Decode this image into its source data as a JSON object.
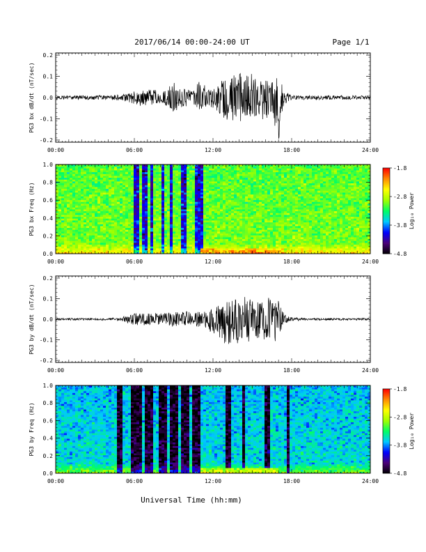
{
  "header": {
    "title": "2017/06/14  00:00-24:00 UT",
    "page": "Page 1/1"
  },
  "footer": {
    "xlabel": "Universal Time (hh:mm)"
  },
  "colorbar": {
    "label": "Log₁₀ Power",
    "ticks": [
      "-1.8",
      "-2.8",
      "-3.8",
      "-4.8"
    ],
    "range": [
      -4.8,
      -1.8
    ],
    "stops": [
      "#000000",
      "#4b0078",
      "#0000ff",
      "#00c8ff",
      "#00ff64",
      "#a0ff00",
      "#ffff00",
      "#ff8c00",
      "#ff0000"
    ]
  },
  "chart_data": [
    {
      "type": "line",
      "ylabel": "PG3 bx dB/dt (nT/sec)",
      "x_ticks": [
        "00:00",
        "06:00",
        "12:00",
        "18:00",
        "24:00"
      ],
      "xlim_hours": [
        0,
        24
      ],
      "ylim": [
        -0.21,
        0.21
      ],
      "y_ticks": [
        "0.2",
        "0.1",
        "0.0",
        "-0.1",
        "-0.2"
      ],
      "x": [
        0,
        1,
        2,
        3,
        4,
        5,
        5.5,
        6,
        6.5,
        7,
        7.5,
        8,
        8.5,
        9,
        9.5,
        10,
        10.5,
        11,
        11.5,
        12,
        12.5,
        13,
        13.5,
        14,
        14.5,
        15,
        15.5,
        16,
        16.5,
        17,
        17.5,
        18,
        19,
        20,
        21,
        22,
        23,
        24
      ],
      "envelope_max": [
        0.01,
        0.01,
        0.01,
        0.01,
        0.01,
        0.015,
        0.02,
        0.03,
        0.03,
        0.04,
        0.04,
        0.03,
        0.04,
        0.1,
        0.05,
        0.04,
        0.03,
        0.12,
        0.04,
        0.05,
        0.08,
        0.1,
        0.11,
        0.12,
        0.12,
        0.11,
        0.1,
        0.09,
        0.07,
        0.1,
        0.03,
        0.01,
        0.01,
        0.01,
        0.01,
        0.01,
        0.01,
        0.01
      ],
      "envelope_min": [
        -0.01,
        -0.01,
        -0.01,
        -0.01,
        -0.01,
        -0.015,
        -0.02,
        -0.03,
        -0.04,
        -0.04,
        -0.03,
        -0.03,
        -0.04,
        -0.07,
        -0.05,
        -0.04,
        -0.03,
        -0.06,
        -0.04,
        -0.05,
        -0.08,
        -0.12,
        -0.11,
        -0.13,
        -0.1,
        -0.12,
        -0.09,
        -0.12,
        -0.08,
        -0.2,
        -0.03,
        -0.01,
        -0.01,
        -0.01,
        -0.01,
        -0.01,
        -0.01,
        -0.01
      ]
    },
    {
      "type": "heatmap",
      "ylabel": "PG3 bx Freq (Hz)",
      "x_ticks": [
        "00:00",
        "06:00",
        "12:00",
        "18:00",
        "24:00"
      ],
      "xlim_hours": [
        0,
        24
      ],
      "ylim": [
        0,
        1
      ],
      "y_ticks": [
        "1.0",
        "0.8",
        "0.6",
        "0.4",
        "0.2",
        "0.0"
      ],
      "z_range": [
        -4.8,
        -1.8
      ],
      "base_level": -3.0,
      "dark_bands_hours": [
        [
          5.9,
          6.3
        ],
        [
          6.6,
          7.0
        ],
        [
          7.15,
          7.5
        ],
        [
          8.0,
          8.3
        ],
        [
          8.7,
          9.0
        ],
        [
          9.6,
          10.0
        ],
        [
          10.7,
          11.3
        ]
      ],
      "low_freq_activity_hours": [
        11.0,
        17.5
      ],
      "peak_level": -1.9
    },
    {
      "type": "line",
      "ylabel": "PG3 by dB/dt (nT/sec)",
      "x_ticks": [
        "00:00",
        "06:00",
        "12:00",
        "18:00",
        "24:00"
      ],
      "xlim_hours": [
        0,
        24
      ],
      "ylim": [
        -0.21,
        0.21
      ],
      "y_ticks": [
        "0.2",
        "0.1",
        "0.0",
        "-0.1",
        "-0.2"
      ],
      "x": [
        0,
        1,
        2,
        3,
        4,
        5,
        5.5,
        6,
        6.5,
        7,
        7.5,
        8,
        8.5,
        9,
        9.5,
        10,
        10.5,
        11,
        11.5,
        12,
        12.5,
        13,
        13.5,
        14,
        14.5,
        15,
        15.5,
        16,
        16.5,
        17,
        17.5,
        18,
        19,
        20,
        21,
        22,
        23,
        24
      ],
      "envelope_max": [
        0.005,
        0.005,
        0.005,
        0.005,
        0.005,
        0.01,
        0.02,
        0.03,
        0.03,
        0.03,
        0.03,
        0.03,
        0.03,
        0.04,
        0.03,
        0.04,
        0.03,
        0.04,
        0.04,
        0.06,
        0.07,
        0.09,
        0.1,
        0.1,
        0.11,
        0.09,
        0.08,
        0.1,
        0.11,
        0.09,
        0.02,
        0.01,
        0.005,
        0.005,
        0.005,
        0.005,
        0.005,
        0.005
      ],
      "envelope_min": [
        -0.005,
        -0.005,
        -0.005,
        -0.005,
        -0.005,
        -0.01,
        -0.02,
        -0.03,
        -0.03,
        -0.03,
        -0.02,
        -0.03,
        -0.03,
        -0.04,
        -0.03,
        -0.03,
        -0.03,
        -0.04,
        -0.05,
        -0.07,
        -0.09,
        -0.13,
        -0.11,
        -0.12,
        -0.1,
        -0.12,
        -0.09,
        -0.1,
        -0.13,
        -0.09,
        -0.02,
        -0.01,
        -0.005,
        -0.005,
        -0.005,
        -0.005,
        -0.005,
        -0.005
      ]
    },
    {
      "type": "heatmap",
      "ylabel": "PG3 by Freq (Hz)",
      "x_ticks": [
        "00:00",
        "06:00",
        "12:00",
        "18:00",
        "24:00"
      ],
      "xlim_hours": [
        0,
        24
      ],
      "ylim": [
        0,
        1
      ],
      "y_ticks": [
        "1.0",
        "0.8",
        "0.6",
        "0.4",
        "0.2",
        "0.0"
      ],
      "z_range": [
        -4.8,
        -1.8
      ],
      "base_level": -3.55,
      "dark_bands_hours": [
        [
          4.6,
          5.0
        ],
        [
          5.8,
          6.6
        ],
        [
          6.9,
          7.5
        ],
        [
          7.9,
          8.6
        ],
        [
          8.8,
          9.4
        ],
        [
          9.6,
          10.2
        ],
        [
          10.5,
          11.0
        ],
        [
          13.0,
          13.3
        ],
        [
          14.2,
          14.5
        ],
        [
          16.0,
          16.3
        ],
        [
          17.6,
          17.8
        ]
      ],
      "low_freq_activity_hours": [
        11.0,
        17.0
      ],
      "peak_level": -2.4
    }
  ]
}
